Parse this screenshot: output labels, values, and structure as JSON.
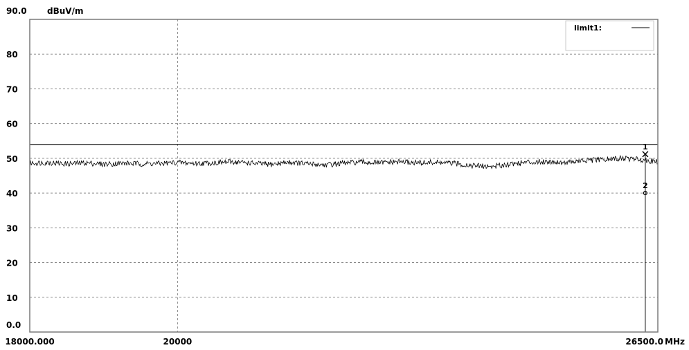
{
  "chart_data": {
    "type": "line",
    "xlim": [
      18000,
      26500
    ],
    "ylim": [
      0,
      90
    ],
    "x_ticks": [
      {
        "value": 18000,
        "label": "18000.000"
      },
      {
        "value": 20000,
        "label": "20000"
      },
      {
        "value": 26500,
        "label": "26500.0"
      }
    ],
    "x_unit": "MHz",
    "y_ticks": [
      {
        "value": 0,
        "label": "0.0"
      },
      {
        "value": 10,
        "label": "10"
      },
      {
        "value": 20,
        "label": "20"
      },
      {
        "value": 30,
        "label": "30"
      },
      {
        "value": 40,
        "label": "40"
      },
      {
        "value": 50,
        "label": "50"
      },
      {
        "value": 60,
        "label": "60"
      },
      {
        "value": 70,
        "label": "70"
      },
      {
        "value": 80,
        "label": "80"
      },
      {
        "value": 90,
        "label": "90.0"
      }
    ],
    "y_unit": "dBuV/m",
    "grid": true,
    "vertical_grid_at": [
      20000
    ],
    "legend": {
      "placement": "top-right",
      "entries": [
        {
          "name": "limit1:",
          "color": "#000000"
        }
      ]
    },
    "series": [
      {
        "name": "limit1:",
        "color": "#000000",
        "x": [
          18000,
          26500
        ],
        "y": [
          54,
          54
        ]
      },
      {
        "color": "#000000",
        "x": [
          18000,
          18250,
          18500,
          18750,
          19000,
          19250,
          19500,
          19750,
          20000,
          20250,
          20500,
          20750,
          21000,
          21250,
          21500,
          21750,
          22000,
          22250,
          22500,
          22750,
          23000,
          23250,
          23500,
          23750,
          24000,
          24250,
          24500,
          24750,
          25000,
          25250,
          25500,
          25750,
          26000,
          26250,
          26500
        ],
        "y": [
          48.6,
          48.8,
          48.4,
          48.7,
          48.3,
          48.6,
          48.4,
          48.5,
          48.8,
          48.5,
          48.7,
          49.0,
          48.6,
          48.2,
          48.9,
          48.4,
          48.1,
          48.6,
          48.9,
          48.7,
          49.0,
          48.7,
          48.8,
          48.5,
          47.9,
          47.6,
          48.4,
          48.9,
          49.1,
          48.8,
          49.3,
          49.6,
          50.0,
          49.7,
          49.0
        ]
      }
    ],
    "markers": [
      {
        "label": "1",
        "x": 26330,
        "y": 51.2,
        "symbol": "x"
      },
      {
        "label": "2",
        "x": 26330,
        "y": 40.0,
        "symbol": "o"
      }
    ],
    "marker_line_x": 26330
  }
}
